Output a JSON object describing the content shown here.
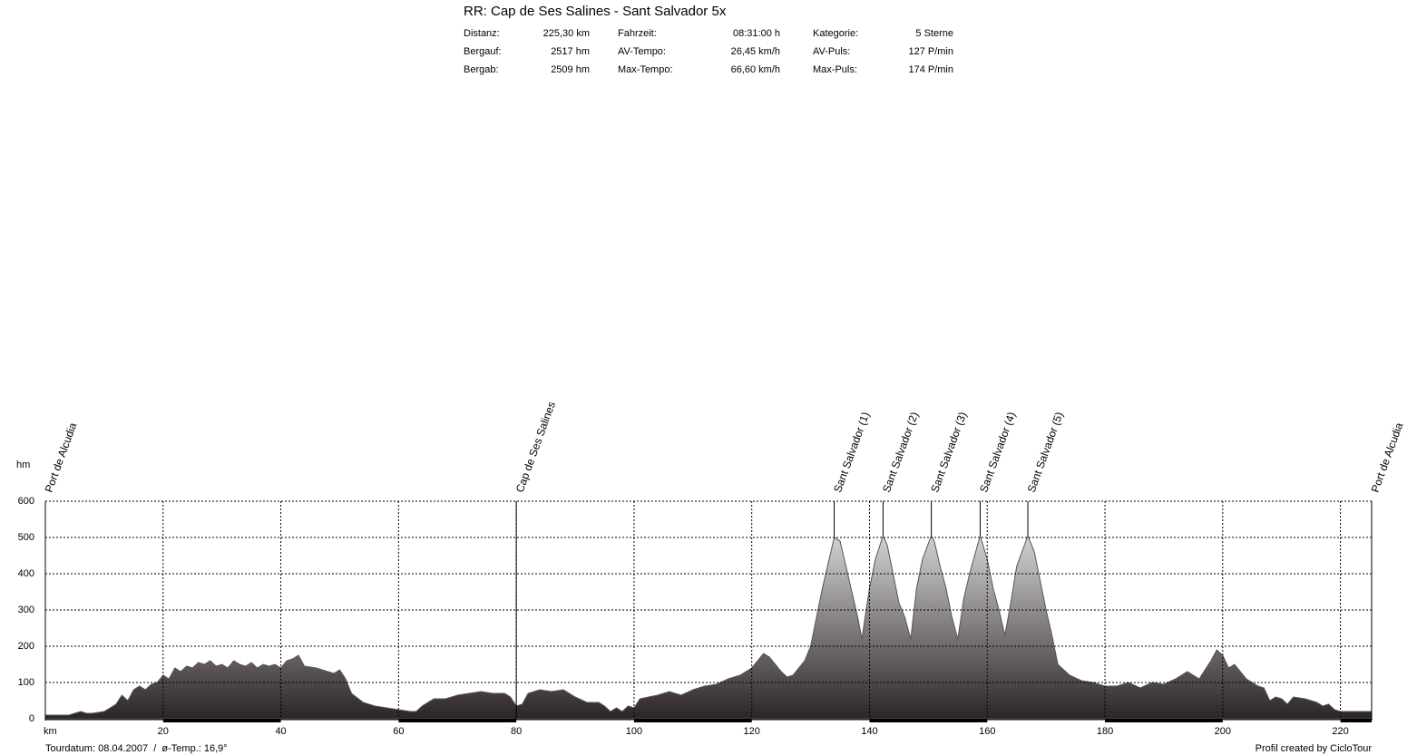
{
  "header": {
    "title": "RR: Cap de Ses Salines - Sant Salvador 5x",
    "stats": [
      [
        [
          "Distanz:",
          "225,30 km"
        ],
        [
          "Bergauf:",
          "2517 hm"
        ],
        [
          "Bergab:",
          "2509 hm"
        ]
      ],
      [
        [
          "Fahrzeit:",
          "08:31:00 h"
        ],
        [
          "AV-Tempo:",
          "26,45 km/h"
        ],
        [
          "Max-Tempo:",
          "66,60 km/h"
        ]
      ],
      [
        [
          "Kategorie:",
          "5 Sterne"
        ],
        [
          "AV-Puls:",
          "127 P/min"
        ],
        [
          "Max-Puls:",
          "174 P/min"
        ]
      ]
    ]
  },
  "chart_data": {
    "type": "area",
    "x_label": "km",
    "y_label": "hm",
    "xlim": [
      0,
      225.3
    ],
    "ylim": [
      0,
      600
    ],
    "xticks": [
      20,
      40,
      60,
      80,
      100,
      120,
      140,
      160,
      180,
      200,
      220
    ],
    "yticks": [
      0,
      100,
      200,
      300,
      400,
      500,
      600
    ],
    "grid": true,
    "x": [
      0,
      2,
      4,
      6,
      7,
      8,
      10,
      12,
      13,
      14,
      15,
      16,
      17,
      18,
      19,
      20,
      21,
      22,
      23,
      24,
      25,
      26,
      27,
      28,
      29,
      30,
      31,
      32,
      33,
      34,
      35,
      36,
      37,
      38,
      39,
      40,
      41,
      42,
      43,
      44,
      46,
      48,
      49,
      50,
      51,
      52,
      54,
      56,
      58,
      60,
      62,
      63,
      64,
      66,
      68,
      70,
      72,
      74,
      76,
      78,
      79,
      80,
      81,
      82,
      84,
      86,
      88,
      90,
      92,
      94,
      95,
      96,
      97,
      98,
      99,
      100,
      101,
      104,
      106,
      108,
      110,
      112,
      114,
      116,
      118,
      120,
      122,
      123,
      124,
      125,
      126,
      127,
      128,
      129,
      130,
      131,
      132,
      133,
      134,
      135,
      136,
      137,
      138,
      138.7,
      140,
      141,
      142.3,
      143,
      144,
      145,
      146,
      147,
      148,
      149,
      150.5,
      151,
      152,
      153,
      154,
      155,
      156,
      157,
      158.8,
      160,
      161,
      162,
      163,
      164,
      165,
      166.9,
      168,
      169,
      170,
      171,
      172,
      174,
      176,
      178,
      180,
      182,
      184,
      186,
      188,
      190,
      192,
      194,
      196,
      198,
      199,
      200,
      201,
      202,
      203,
      204,
      206,
      207,
      208,
      209,
      210,
      211,
      212,
      214,
      216,
      217,
      218,
      219,
      220,
      222,
      225.3
    ],
    "values": [
      10,
      10,
      10,
      20,
      15,
      15,
      20,
      40,
      65,
      50,
      80,
      90,
      80,
      95,
      100,
      120,
      110,
      140,
      130,
      145,
      140,
      155,
      150,
      160,
      145,
      150,
      140,
      160,
      150,
      145,
      155,
      140,
      150,
      145,
      150,
      140,
      160,
      165,
      175,
      145,
      140,
      130,
      125,
      135,
      110,
      70,
      45,
      35,
      30,
      25,
      20,
      20,
      35,
      55,
      55,
      65,
      70,
      75,
      70,
      70,
      60,
      35,
      40,
      70,
      80,
      75,
      80,
      60,
      45,
      45,
      35,
      20,
      30,
      20,
      35,
      30,
      55,
      65,
      75,
      65,
      80,
      90,
      95,
      110,
      120,
      140,
      180,
      170,
      150,
      130,
      115,
      120,
      140,
      160,
      200,
      280,
      360,
      430,
      500,
      490,
      420,
      350,
      280,
      220,
      360,
      440,
      505,
      480,
      400,
      320,
      280,
      220,
      360,
      440,
      505,
      490,
      420,
      360,
      280,
      220,
      330,
      400,
      505,
      440,
      360,
      300,
      230,
      320,
      420,
      505,
      460,
      380,
      300,
      230,
      150,
      120,
      105,
      100,
      90,
      90,
      100,
      85,
      100,
      95,
      110,
      130,
      110,
      160,
      190,
      175,
      140,
      150,
      130,
      110,
      90,
      85,
      50,
      60,
      55,
      40,
      60,
      55,
      45,
      35,
      40,
      25,
      20,
      20,
      20
    ],
    "color": "#3a3236",
    "waypoints": [
      {
        "label": "Port de Alcudia",
        "x": 0
      },
      {
        "label": "Cap de Ses Salines",
        "x": 80
      },
      {
        "label": "Sant Salvador (1)",
        "x": 134
      },
      {
        "label": "Sant Salvador (2)",
        "x": 142.3
      },
      {
        "label": "Sant Salvador (3)",
        "x": 150.5
      },
      {
        "label": "Sant Salvador (4)",
        "x": 158.8
      },
      {
        "label": "Sant Salvador (5)",
        "x": 166.9
      },
      {
        "label": "Port de Alcudia",
        "x": 225.3
      }
    ]
  },
  "footer": {
    "left": "Tourdatum: 08.04.2007  /  ø-Temp.: 16,9°",
    "right": "Profil created by CicloTour"
  }
}
